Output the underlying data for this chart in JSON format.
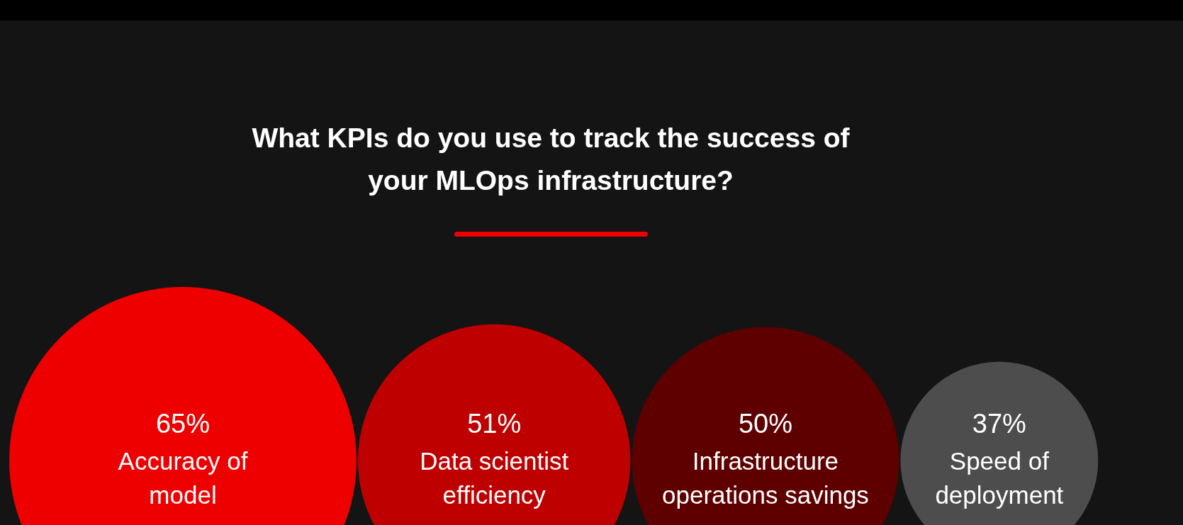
{
  "chart_data": {
    "type": "other",
    "title": "What KPIs do you use to track the success of your MLOps infrastructure?",
    "categories": [
      "Accuracy of model",
      "Data scientist efficiency",
      "Infrastructure operations savings",
      "Speed of deployment"
    ],
    "values": [
      65,
      51,
      50,
      37
    ],
    "value_labels": [
      "65%",
      "51%",
      "50%",
      "37%"
    ],
    "colors": [
      "#ee0000",
      "#be0000",
      "#5f0000",
      "#4d4d4d"
    ]
  }
}
